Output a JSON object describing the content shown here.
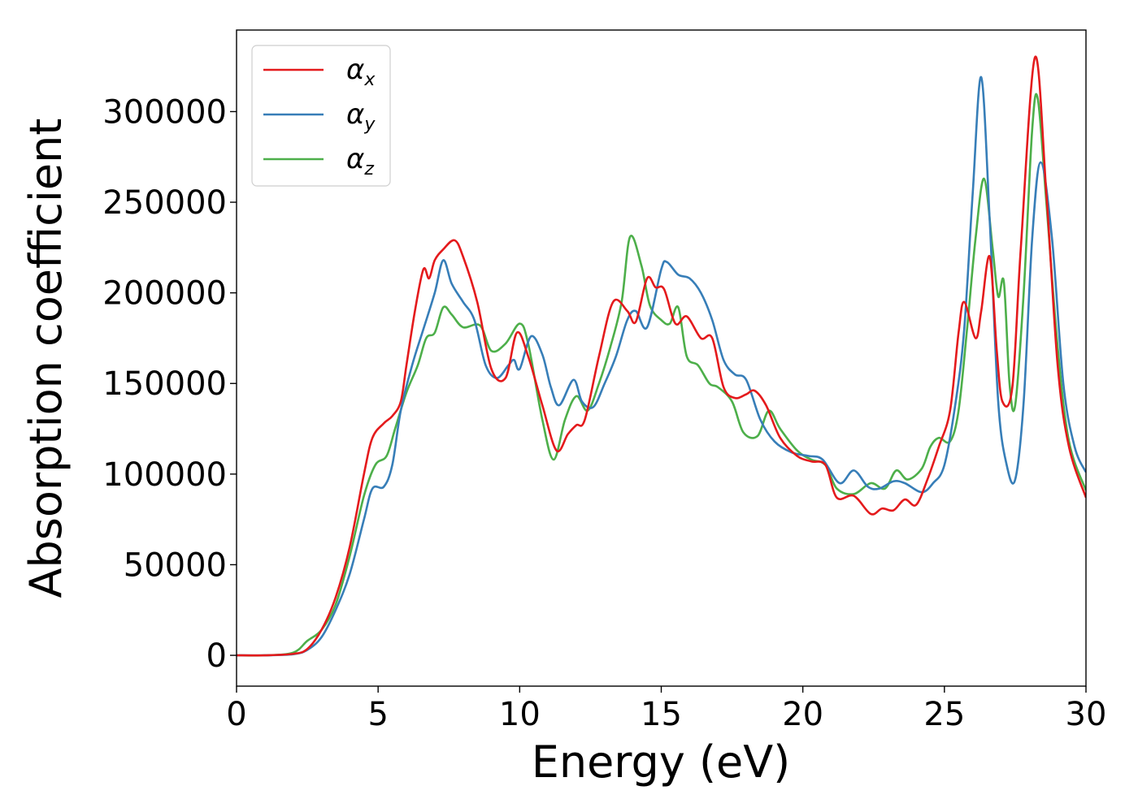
{
  "chart_data": {
    "type": "line",
    "title": "",
    "xlabel": "Energy (eV)",
    "ylabel": "Absorption coefficient",
    "xlim": [
      0,
      30
    ],
    "ylim": [
      -17000,
      345000
    ],
    "xticks": [
      0,
      5,
      10,
      15,
      20,
      25,
      30
    ],
    "yticks": [
      0,
      50000,
      100000,
      150000,
      200000,
      250000,
      300000
    ],
    "xtick_labels": [
      "0",
      "5",
      "10",
      "15",
      "20",
      "25",
      "30"
    ],
    "ytick_labels": [
      "0",
      "50000",
      "100000",
      "150000",
      "200000",
      "250000",
      "300000"
    ],
    "grid": false,
    "legend_position": "top-left",
    "series": [
      {
        "name": "αx",
        "symbol": "α",
        "subscript": "x",
        "color": "#e41a1c",
        "points": [
          [
            0,
            0
          ],
          [
            1,
            0
          ],
          [
            2,
            800
          ],
          [
            2.5,
            3500
          ],
          [
            3,
            14000
          ],
          [
            3.5,
            32000
          ],
          [
            4,
            60000
          ],
          [
            4.5,
            100000
          ],
          [
            4.8,
            120000
          ],
          [
            5.2,
            128000
          ],
          [
            5.5,
            132000
          ],
          [
            5.8,
            140000
          ],
          [
            6,
            160000
          ],
          [
            6.3,
            190000
          ],
          [
            6.6,
            213000
          ],
          [
            6.8,
            208000
          ],
          [
            7,
            218000
          ],
          [
            7.3,
            224000
          ],
          [
            7.7,
            229000
          ],
          [
            8,
            220000
          ],
          [
            8.5,
            195000
          ],
          [
            9,
            158000
          ],
          [
            9.5,
            153000
          ],
          [
            9.9,
            178000
          ],
          [
            10.3,
            165000
          ],
          [
            10.8,
            138000
          ],
          [
            11.3,
            113000
          ],
          [
            11.7,
            122000
          ],
          [
            12,
            127000
          ],
          [
            12.3,
            130000
          ],
          [
            12.8,
            165000
          ],
          [
            13.3,
            195000
          ],
          [
            13.8,
            190000
          ],
          [
            14.1,
            184000
          ],
          [
            14.5,
            208000
          ],
          [
            14.8,
            203000
          ],
          [
            15.1,
            202000
          ],
          [
            15.5,
            183000
          ],
          [
            15.9,
            187000
          ],
          [
            16.4,
            175000
          ],
          [
            16.8,
            175000
          ],
          [
            17.2,
            148000
          ],
          [
            17.6,
            142000
          ],
          [
            18,
            144000
          ],
          [
            18.3,
            146000
          ],
          [
            18.7,
            138000
          ],
          [
            19.2,
            120000
          ],
          [
            19.8,
            110000
          ],
          [
            20.3,
            107000
          ],
          [
            20.8,
            105000
          ],
          [
            21.2,
            87000
          ],
          [
            21.8,
            88000
          ],
          [
            22.4,
            78000
          ],
          [
            22.8,
            81000
          ],
          [
            23.2,
            80000
          ],
          [
            23.6,
            86000
          ],
          [
            24,
            83000
          ],
          [
            24.4,
            97000
          ],
          [
            24.8,
            115000
          ],
          [
            25.2,
            135000
          ],
          [
            25.5,
            178000
          ],
          [
            25.7,
            195000
          ],
          [
            26.1,
            175000
          ],
          [
            26.3,
            190000
          ],
          [
            26.6,
            220000
          ],
          [
            26.85,
            168000
          ],
          [
            27.05,
            140000
          ],
          [
            27.4,
            148000
          ],
          [
            27.7,
            225000
          ],
          [
            28.2,
            330000
          ],
          [
            28.6,
            255000
          ],
          [
            29,
            160000
          ],
          [
            29.4,
            115000
          ],
          [
            30,
            87000
          ]
        ]
      },
      {
        "name": "αy",
        "symbol": "α",
        "subscript": "y",
        "color": "#377eb8",
        "points": [
          [
            0,
            0
          ],
          [
            1,
            0
          ],
          [
            2,
            600
          ],
          [
            2.5,
            3000
          ],
          [
            3,
            10000
          ],
          [
            3.5,
            25000
          ],
          [
            4,
            45000
          ],
          [
            4.5,
            75000
          ],
          [
            4.8,
            92000
          ],
          [
            5.2,
            93000
          ],
          [
            5.5,
            105000
          ],
          [
            5.8,
            135000
          ],
          [
            6.2,
            160000
          ],
          [
            6.6,
            180000
          ],
          [
            7,
            200000
          ],
          [
            7.3,
            218000
          ],
          [
            7.6,
            205000
          ],
          [
            8,
            195000
          ],
          [
            8.4,
            185000
          ],
          [
            8.8,
            160000
          ],
          [
            9.2,
            153000
          ],
          [
            9.6,
            160000
          ],
          [
            9.8,
            163000
          ],
          [
            10,
            158000
          ],
          [
            10.4,
            176000
          ],
          [
            10.8,
            166000
          ],
          [
            11.1,
            148000
          ],
          [
            11.4,
            138000
          ],
          [
            11.9,
            152000
          ],
          [
            12.2,
            140000
          ],
          [
            12.6,
            137000
          ],
          [
            13,
            150000
          ],
          [
            13.4,
            165000
          ],
          [
            13.8,
            185000
          ],
          [
            14.1,
            190000
          ],
          [
            14.5,
            181000
          ],
          [
            15,
            213000
          ],
          [
            15.2,
            217000
          ],
          [
            15.6,
            210000
          ],
          [
            16,
            208000
          ],
          [
            16.4,
            200000
          ],
          [
            16.8,
            185000
          ],
          [
            17.2,
            163000
          ],
          [
            17.6,
            155000
          ],
          [
            18,
            152000
          ],
          [
            18.5,
            130000
          ],
          [
            19,
            118000
          ],
          [
            19.6,
            112000
          ],
          [
            20.2,
            110000
          ],
          [
            20.7,
            108000
          ],
          [
            21.3,
            95000
          ],
          [
            21.8,
            102000
          ],
          [
            22.3,
            93000
          ],
          [
            22.7,
            92000
          ],
          [
            23.2,
            96000
          ],
          [
            23.6,
            95000
          ],
          [
            24.2,
            90000
          ],
          [
            24.6,
            95000
          ],
          [
            25,
            105000
          ],
          [
            25.4,
            140000
          ],
          [
            25.7,
            180000
          ],
          [
            26,
            255000
          ],
          [
            26.3,
            319000
          ],
          [
            26.6,
            240000
          ],
          [
            26.9,
            140000
          ],
          [
            27.2,
            105000
          ],
          [
            27.5,
            97000
          ],
          [
            27.8,
            140000
          ],
          [
            28.1,
            230000
          ],
          [
            28.4,
            272000
          ],
          [
            28.8,
            230000
          ],
          [
            29.2,
            150000
          ],
          [
            29.6,
            115000
          ],
          [
            30,
            101000
          ]
        ]
      },
      {
        "name": "αz",
        "symbol": "α",
        "subscript": "z",
        "color": "#4daf4a",
        "points": [
          [
            0,
            0
          ],
          [
            1,
            0
          ],
          [
            2,
            1500
          ],
          [
            2.5,
            8000
          ],
          [
            3,
            14000
          ],
          [
            3.5,
            28000
          ],
          [
            4,
            55000
          ],
          [
            4.5,
            88000
          ],
          [
            4.9,
            105000
          ],
          [
            5.3,
            110000
          ],
          [
            5.6,
            125000
          ],
          [
            6,
            145000
          ],
          [
            6.4,
            160000
          ],
          [
            6.7,
            175000
          ],
          [
            7,
            178000
          ],
          [
            7.3,
            192000
          ],
          [
            7.6,
            188000
          ],
          [
            8,
            181000
          ],
          [
            8.6,
            182000
          ],
          [
            9,
            168000
          ],
          [
            9.5,
            172000
          ],
          [
            10,
            183000
          ],
          [
            10.3,
            172000
          ],
          [
            10.8,
            130000
          ],
          [
            11.2,
            108000
          ],
          [
            11.6,
            130000
          ],
          [
            12,
            143000
          ],
          [
            12.4,
            135000
          ],
          [
            12.8,
            150000
          ],
          [
            13.2,
            170000
          ],
          [
            13.6,
            195000
          ],
          [
            13.9,
            231000
          ],
          [
            14.3,
            215000
          ],
          [
            14.6,
            193000
          ],
          [
            15,
            185000
          ],
          [
            15.3,
            183000
          ],
          [
            15.6,
            192000
          ],
          [
            15.9,
            165000
          ],
          [
            16.3,
            160000
          ],
          [
            16.7,
            150000
          ],
          [
            17,
            148000
          ],
          [
            17.5,
            140000
          ],
          [
            17.9,
            123000
          ],
          [
            18.4,
            121000
          ],
          [
            18.8,
            135000
          ],
          [
            19.2,
            125000
          ],
          [
            19.8,
            113000
          ],
          [
            20.3,
            108000
          ],
          [
            20.8,
            105000
          ],
          [
            21.2,
            92000
          ],
          [
            21.8,
            89000
          ],
          [
            22.4,
            95000
          ],
          [
            22.9,
            92000
          ],
          [
            23.3,
            102000
          ],
          [
            23.7,
            97000
          ],
          [
            24.2,
            103000
          ],
          [
            24.5,
            115000
          ],
          [
            24.8,
            120000
          ],
          [
            25.2,
            118000
          ],
          [
            25.5,
            135000
          ],
          [
            25.8,
            180000
          ],
          [
            26.1,
            230000
          ],
          [
            26.4,
            263000
          ],
          [
            26.7,
            225000
          ],
          [
            26.9,
            198000
          ],
          [
            27.1,
            206000
          ],
          [
            27.3,
            150000
          ],
          [
            27.5,
            138000
          ],
          [
            27.8,
            200000
          ],
          [
            28.1,
            290000
          ],
          [
            28.3,
            307000
          ],
          [
            28.6,
            250000
          ],
          [
            29,
            170000
          ],
          [
            29.4,
            118000
          ],
          [
            30,
            91000
          ]
        ]
      }
    ]
  }
}
